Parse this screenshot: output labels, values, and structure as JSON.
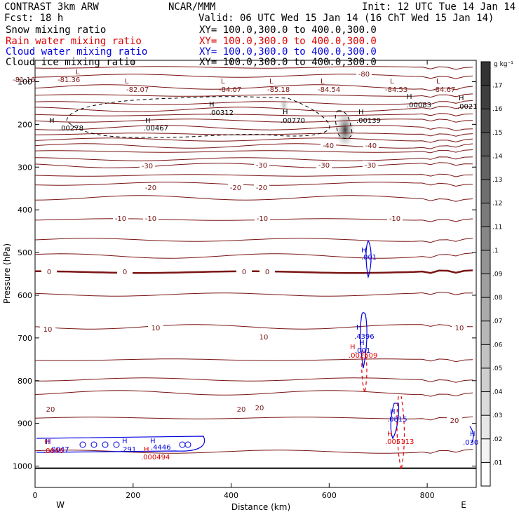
{
  "header": {
    "left_line1": "CONTRAST  3km ARW",
    "center_line1": "NCAR/MMM",
    "right_line1": "Init: 12 UTC Tue 14 Jan 14",
    "left_line2": "Fcst:    18 h",
    "right_line2": "Valid: 06 UTC Wed 15 Jan 14 (16 ChT Wed 15 Jan 14)",
    "fields": [
      {
        "name": "Snow mixing ratio",
        "xy": "XY= 100.0,300.0 to 400.0,300.0",
        "color": "#000000"
      },
      {
        "name": "Rain water mixing ratio",
        "xy": "XY= 100.0,300.0 to 400.0,300.0",
        "color": "#e00000"
      },
      {
        "name": "Cloud water mixing ratio",
        "xy": "XY= 100.0,300.0 to 400.0,300.0",
        "color": "#0000e0"
      },
      {
        "name": "Cloud ice mixing ratio",
        "xy": "XY= 100.0,300.0 to 400.0,300.0",
        "color": "#000000"
      }
    ]
  },
  "chart_data": {
    "type": "contour",
    "xlabel": "Distance (km)",
    "ylabel": "Pressure (hPa)",
    "xlim": [
      0,
      900
    ],
    "ylim": [
      1050,
      50
    ],
    "x_ticks": [
      0,
      200,
      400,
      600,
      800
    ],
    "y_ticks": [
      100,
      200,
      300,
      400,
      500,
      600,
      700,
      800,
      900,
      1000
    ],
    "endpoints": {
      "left": "W",
      "right": "E"
    },
    "colorbar": {
      "units": "g kg⁻¹",
      "levels": [
        ".01",
        ".02",
        ".03",
        ".04",
        ".05",
        ".06",
        ".07",
        ".08",
        ".09",
        ".1",
        ".11",
        ".12",
        ".13",
        ".14",
        ".15",
        ".16",
        ".17"
      ]
    },
    "temperature_contour_labels": [
      "-80",
      "-40",
      "-40",
      "-30",
      "-30",
      "-30",
      "-30",
      "-20",
      "-20",
      "-20",
      "-10",
      "-10",
      "-10",
      "-10",
      "0",
      "0",
      "0",
      "0",
      "10",
      "10",
      "10",
      "10",
      "20",
      "20",
      "20",
      "20"
    ],
    "low_values": [
      "-81.16",
      "-81.36",
      "-82.07",
      "-84.07",
      "-85.18",
      "-84.54",
      "-84.53",
      "-84.67"
    ],
    "ice_maxima": [
      ".00278",
      ".00467",
      ".00312",
      ".00770",
      ".00139",
      ".00083",
      ".0021"
    ],
    "cloud_water_maxima": [
      ".001",
      ".4396",
      ".001",
      ".0815",
      ".291",
      ".4446",
      ".0047",
      ".030"
    ],
    "rain_maxima": [
      ".002609",
      ".005113",
      ".000494",
      ".0046"
    ],
    "markers": {
      "low": "L",
      "high": "H"
    },
    "colors": {
      "temperature": "#7a1414",
      "rain": "#e00000",
      "cloud_water": "#0000e0",
      "ice": "#000000",
      "snow_shade": "#404040"
    }
  }
}
